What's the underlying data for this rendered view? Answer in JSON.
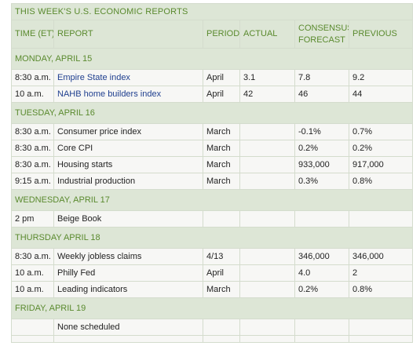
{
  "title": "THIS WEEK'S U.S. ECONOMIC REPORTS",
  "headers": {
    "time": "TIME (ET)",
    "report": "REPORT",
    "period": "PERIOD",
    "actual": "ACTUAL",
    "consensus_line1": "CONSENSUS",
    "consensus_line2": "FORECAST",
    "previous": "PREVIOUS"
  },
  "days": [
    {
      "label": "MONDAY, APRIL 15",
      "rows": [
        {
          "time": "8:30 a.m.",
          "report": "Empire State index",
          "period": "April",
          "actual": "3.1",
          "forecast": "7.8",
          "previous": "9.2"
        },
        {
          "time": "10 a.m.",
          "report": "NAHB home builders index",
          "period": "April",
          "actual": "42",
          "forecast": "46",
          "previous": "44"
        }
      ]
    },
    {
      "label": "TUESDAY, APRIL 16",
      "rows": [
        {
          "time": "8:30 a.m.",
          "report": "Consumer price index",
          "period": "March",
          "actual": "",
          "forecast": "-0.1%",
          "previous": "0.7%"
        },
        {
          "time": "8:30 a.m.",
          "report": "Core CPI",
          "period": "March",
          "actual": "",
          "forecast": "0.2%",
          "previous": "0.2%"
        },
        {
          "time": "8:30 a.m.",
          "report": "Housing starts",
          "period": "March",
          "actual": "",
          "forecast": "933,000",
          "previous": "917,000"
        },
        {
          "time": "9:15 a.m.",
          "report": "Industrial production",
          "period": "March",
          "actual": "",
          "forecast": "0.3%",
          "previous": "0.8%"
        }
      ]
    },
    {
      "label": "WEDNESDAY, APRIL 17",
      "rows": [
        {
          "time": "2 pm",
          "report": "Beige Book",
          "period": "",
          "actual": "",
          "forecast": "",
          "previous": ""
        }
      ]
    },
    {
      "label": "THURSDAY APRIL 18",
      "rows": [
        {
          "time": "8:30 a.m.",
          "report": "Weekly jobless claims",
          "period": "4/13",
          "actual": "",
          "forecast": "346,000",
          "previous": "346,000"
        },
        {
          "time": "10 a.m.",
          "report": "Philly Fed",
          "period": "April",
          "actual": "",
          "forecast": "4.0",
          "previous": "2"
        },
        {
          "time": "10 a.m.",
          "report": "Leading indicators",
          "period": "March",
          "actual": "",
          "forecast": "0.2%",
          "previous": "0.8%"
        }
      ]
    },
    {
      "label": "FRIDAY, APRIL 19",
      "rows": [
        {
          "time": "",
          "report": "None scheduled",
          "period": "",
          "actual": "",
          "forecast": "",
          "previous": ""
        }
      ]
    }
  ]
}
